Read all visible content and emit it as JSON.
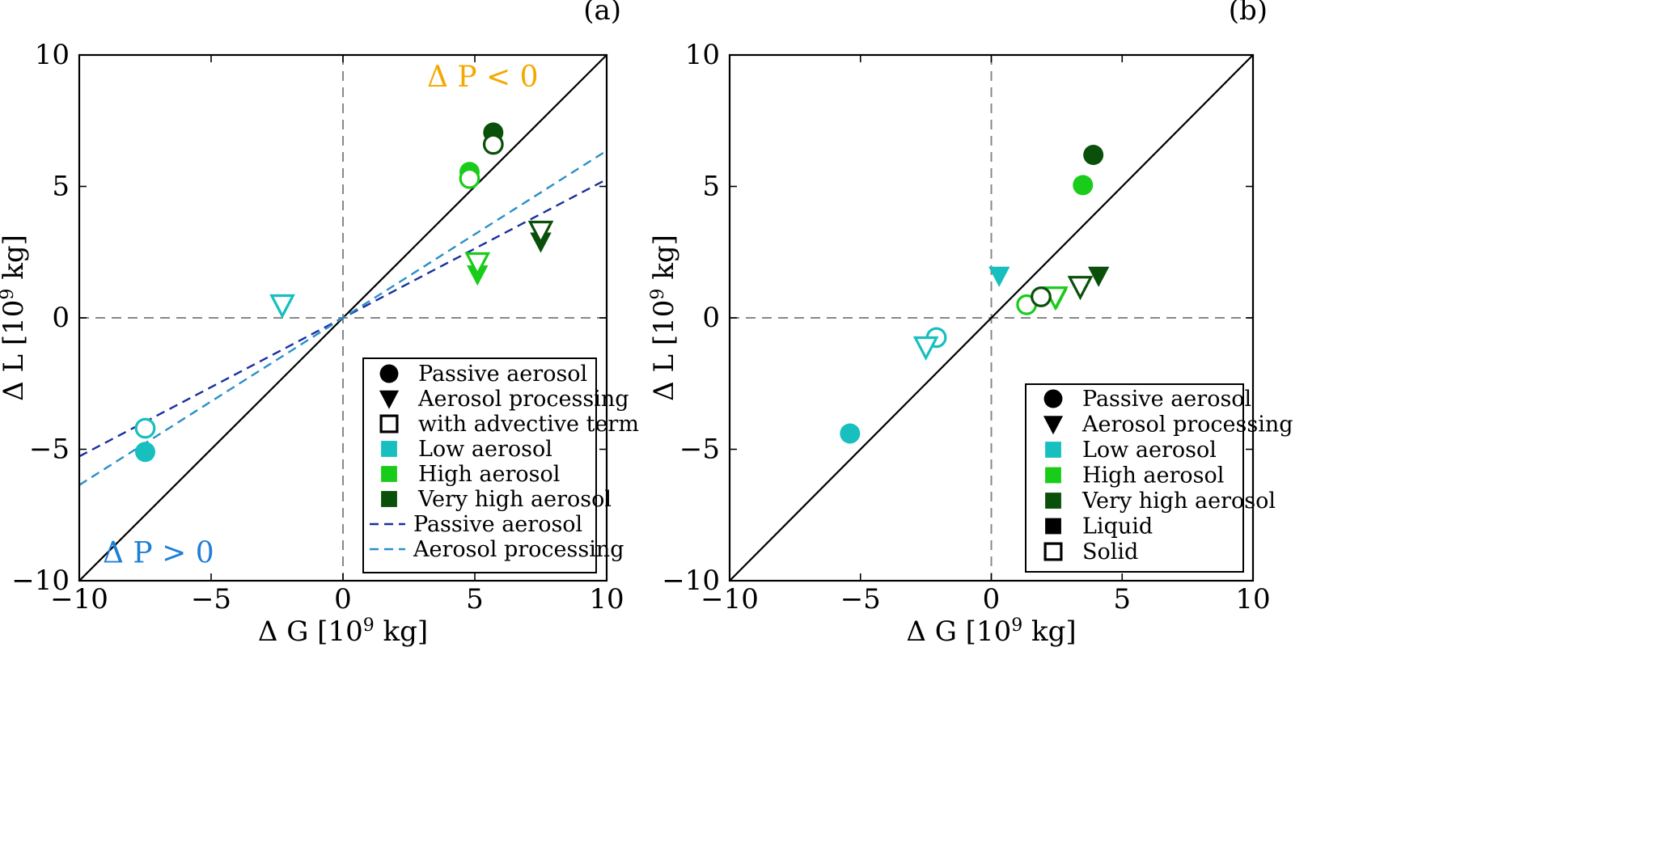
{
  "chart_data": [
    {
      "type": "scatter",
      "panel_label": "(a)",
      "xlabel": "Δ G [10",
      "xlabel_sup": "9",
      "xlabel_tail": " kg]",
      "ylabel": "Δ L [10",
      "ylabel_sup": "9",
      "ylabel_tail": " kg]",
      "xlim": [
        -10,
        10
      ],
      "ylim": [
        -10,
        10
      ],
      "xticks": [
        -10,
        -5,
        0,
        5,
        10
      ],
      "yticks": [
        -10,
        -5,
        0,
        5,
        10
      ],
      "xtick_labels": [
        "−10",
        "−5",
        "0",
        "5",
        "10"
      ],
      "ytick_labels": [
        "−10",
        "−5",
        "0",
        "5",
        "10"
      ],
      "annotations": [
        {
          "id": "dp-neg",
          "text": "Δ P < 0",
          "x": 5.3,
          "y": 8.8,
          "color": "#f5a800"
        },
        {
          "id": "dp-pos",
          "text": "Δ P > 0",
          "x": -7.0,
          "y": -9.3,
          "color": "#1e7fd6"
        }
      ],
      "series": [
        {
          "name": "Low aerosol",
          "color": "#17bfbf",
          "points": [
            {
              "marker": "circle",
              "filled": true,
              "x": -7.5,
              "y": -5.1
            },
            {
              "marker": "circle",
              "filled": false,
              "x": -7.5,
              "y": -4.2
            },
            {
              "marker": "triangle",
              "filled": true,
              "x": -2.3,
              "y": 0.4
            },
            {
              "marker": "triangle",
              "filled": false,
              "x": -2.3,
              "y": 0.5
            }
          ]
        },
        {
          "name": "High aerosol",
          "color": "#19cc19",
          "points": [
            {
              "marker": "circle",
              "filled": true,
              "x": 4.8,
              "y": 5.55
            },
            {
              "marker": "circle",
              "filled": false,
              "x": 4.8,
              "y": 5.3
            },
            {
              "marker": "triangle",
              "filled": true,
              "x": 5.1,
              "y": 1.65
            },
            {
              "marker": "triangle",
              "filled": false,
              "x": 5.1,
              "y": 2.1
            }
          ]
        },
        {
          "name": "Very high aerosol",
          "color": "#0a4f0a",
          "points": [
            {
              "marker": "circle",
              "filled": true,
              "x": 5.7,
              "y": 7.05
            },
            {
              "marker": "circle",
              "filled": false,
              "x": 5.7,
              "y": 6.6
            },
            {
              "marker": "triangle",
              "filled": true,
              "x": 7.5,
              "y": 2.9
            },
            {
              "marker": "triangle",
              "filled": false,
              "x": 7.5,
              "y": 3.3
            }
          ]
        }
      ],
      "fit_lines": [
        {
          "name": "Passive aerosol",
          "slope": 0.527,
          "color": "#1a2fa0"
        },
        {
          "name": "Aerosol processing",
          "slope": 0.636,
          "color": "#2a8fc7"
        }
      ],
      "legend": {
        "position": "lower-right",
        "items": [
          {
            "label": "Passive aerosol",
            "kind": "marker",
            "marker": "circle",
            "filled": true,
            "color": "#000000"
          },
          {
            "label": "Aerosol processing",
            "kind": "marker",
            "marker": "triangle",
            "filled": true,
            "color": "#000000"
          },
          {
            "label": "with advective term",
            "kind": "marker",
            "marker": "square",
            "filled": false,
            "color": "#000000"
          },
          {
            "label": "Low aerosol",
            "kind": "marker",
            "marker": "square",
            "filled": true,
            "color": "#17bfbf"
          },
          {
            "label": "High aerosol",
            "kind": "marker",
            "marker": "square",
            "filled": true,
            "color": "#19cc19"
          },
          {
            "label": "Very high aerosol",
            "kind": "marker",
            "marker": "square",
            "filled": true,
            "color": "#0a4f0a"
          },
          {
            "label": "Passive aerosol",
            "kind": "line",
            "color": "#1a2fa0"
          },
          {
            "label": "Aerosol processing",
            "kind": "line",
            "color": "#2a8fc7"
          }
        ]
      }
    },
    {
      "type": "scatter",
      "panel_label": "(b)",
      "xlabel": "Δ G [10",
      "xlabel_sup": "9",
      "xlabel_tail": " kg]",
      "ylabel": "Δ L [10",
      "ylabel_sup": "9",
      "ylabel_tail": " kg]",
      "xlim": [
        -10,
        10
      ],
      "ylim": [
        -10,
        10
      ],
      "xticks": [
        -10,
        -5,
        0,
        5,
        10
      ],
      "yticks": [
        -10,
        -5,
        0,
        5,
        10
      ],
      "xtick_labels": [
        "−10",
        "−5",
        "0",
        "5",
        "10"
      ],
      "ytick_labels": [
        "−10",
        "−5",
        "0",
        "5",
        "10"
      ],
      "annotations": [],
      "series": [
        {
          "name": "Low aerosol",
          "color": "#17bfbf",
          "points": [
            {
              "marker": "circle",
              "filled": true,
              "x": -5.4,
              "y": -4.4
            },
            {
              "marker": "circle",
              "filled": false,
              "x": -2.1,
              "y": -0.75
            },
            {
              "marker": "triangle",
              "filled": true,
              "x": 0.3,
              "y": 1.6
            },
            {
              "marker": "triangle",
              "filled": false,
              "x": -2.5,
              "y": -1.1
            }
          ]
        },
        {
          "name": "High aerosol",
          "color": "#19cc19",
          "points": [
            {
              "marker": "circle",
              "filled": true,
              "x": 3.5,
              "y": 5.05
            },
            {
              "marker": "circle",
              "filled": false,
              "x": 1.35,
              "y": 0.5
            },
            {
              "marker": "triangle",
              "filled": true,
              "x": 2.5,
              "y": 0.75
            },
            {
              "marker": "triangle",
              "filled": false,
              "x": 2.45,
              "y": 0.8
            }
          ]
        },
        {
          "name": "Very high aerosol",
          "color": "#0a4f0a",
          "points": [
            {
              "marker": "circle",
              "filled": true,
              "x": 3.9,
              "y": 6.2
            },
            {
              "marker": "circle",
              "filled": false,
              "x": 1.9,
              "y": 0.8
            },
            {
              "marker": "triangle",
              "filled": true,
              "x": 4.1,
              "y": 1.6
            },
            {
              "marker": "triangle",
              "filled": false,
              "x": 3.4,
              "y": 1.2
            }
          ]
        }
      ],
      "fit_lines": [],
      "legend": {
        "position": "lower-right",
        "items": [
          {
            "label": "Passive aerosol",
            "kind": "marker",
            "marker": "circle",
            "filled": true,
            "color": "#000000"
          },
          {
            "label": "Aerosol processing",
            "kind": "marker",
            "marker": "triangle",
            "filled": true,
            "color": "#000000"
          },
          {
            "label": "Low aerosol",
            "kind": "marker",
            "marker": "square",
            "filled": true,
            "color": "#17bfbf"
          },
          {
            "label": "High aerosol",
            "kind": "marker",
            "marker": "square",
            "filled": true,
            "color": "#19cc19"
          },
          {
            "label": "Very high aerosol",
            "kind": "marker",
            "marker": "square",
            "filled": true,
            "color": "#0a4f0a"
          },
          {
            "label": "Liquid",
            "kind": "marker",
            "marker": "square",
            "filled": true,
            "color": "#000000"
          },
          {
            "label": "Solid",
            "kind": "marker",
            "marker": "square",
            "filled": false,
            "color": "#000000"
          }
        ]
      }
    }
  ]
}
